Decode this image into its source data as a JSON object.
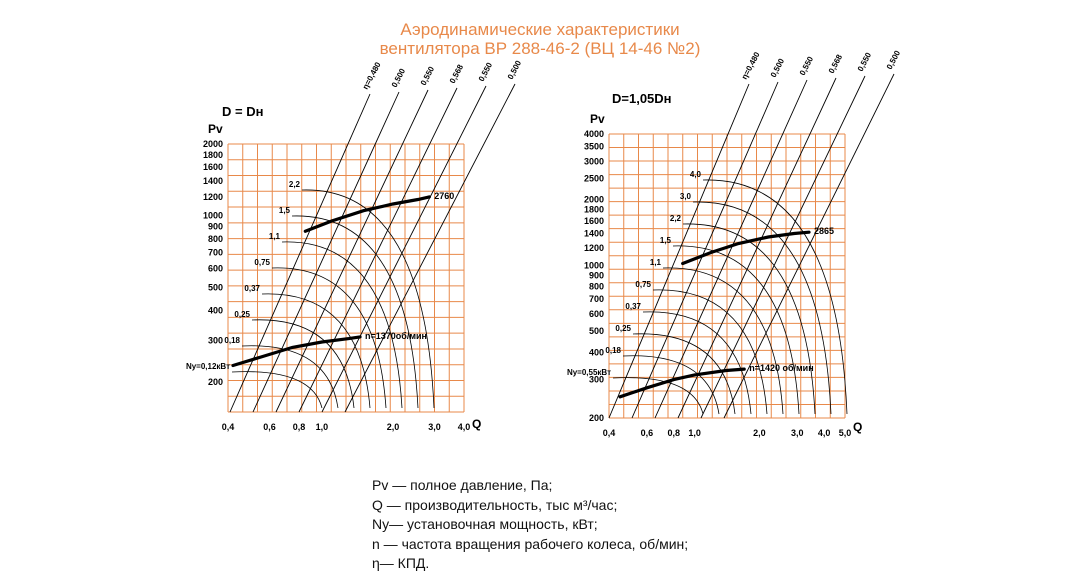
{
  "title_line1": "Аэродинамические характеристики",
  "title_line2": "вентилятора  ВР 288-46-2 (ВЦ 14-46 №2)",
  "colors": {
    "grid": "#e8894a",
    "title": "#e8894a",
    "ink": "#000000"
  },
  "legend": [
    "Pv — полное давление, Па;",
    "Q  — производительность, тыс м³/час;",
    "Ny— установочная мощность, кВт;",
    "n — частота вращения рабочего колеса, об/мин;",
    "η— КПД."
  ],
  "chart_data": [
    {
      "type": "line",
      "title": "D = Dн",
      "ylabel": "Pv",
      "xlabel": "Q",
      "x_scale": "log",
      "y_scale": "log",
      "xlim": [
        0.4,
        4.0
      ],
      "ylim": [
        150,
        2000
      ],
      "x_ticks": [
        "0,4",
        "0,6",
        "0,8",
        "1,0",
        "2,0",
        "3,0",
        "4,0"
      ],
      "x_tick_values": [
        0.4,
        0.6,
        0.8,
        1.0,
        2.0,
        3.0,
        4.0
      ],
      "y_ticks": [
        "2000",
        "1800",
        "1600",
        "1400",
        "1200",
        "1000",
        "900",
        "800",
        "700",
        "600",
        "500",
        "400",
        "300",
        "200"
      ],
      "y_tick_values": [
        2000,
        1800,
        1600,
        1400,
        1200,
        1000,
        900,
        800,
        700,
        600,
        500,
        400,
        300,
        200
      ],
      "series": [
        {
          "name": "2760",
          "x": [
            0.85,
            1.1,
            1.5,
            2.0,
            2.55,
            2.85
          ],
          "y": [
            860,
            950,
            1050,
            1120,
            1170,
            1200
          ]
        },
        {
          "name": "n=1370об/мин",
          "x": [
            0.42,
            0.55,
            0.75,
            1.0,
            1.3,
            1.45
          ],
          "y": [
            235,
            255,
            280,
            295,
            305,
            310
          ]
        }
      ],
      "efficiency_labels": [
        "η=0,480",
        "0,500",
        "0,550",
        "0,568",
        "0,550",
        "0,500"
      ],
      "power_labels": [
        "Ny=0,12кВт",
        "0,18",
        "0,25",
        "0,37",
        "0,75",
        "1,1",
        "1,5",
        "2,2"
      ],
      "grid": true
    },
    {
      "type": "line",
      "title": "D=1,05Dн",
      "ylabel": "Pv",
      "xlabel": "Q",
      "x_scale": "log",
      "y_scale": "log",
      "xlim": [
        0.4,
        5.0
      ],
      "ylim": [
        200,
        4000
      ],
      "x_ticks": [
        "0,4",
        "0,6",
        "0,8",
        "1,0",
        "2,0",
        "3,0",
        "4,0",
        "5,0"
      ],
      "x_tick_values": [
        0.4,
        0.6,
        0.8,
        1.0,
        2.0,
        3.0,
        4.0,
        5.0
      ],
      "y_ticks": [
        "4000",
        "3500",
        "3000",
        "2500",
        "2000",
        "1800",
        "1600",
        "1400",
        "1200",
        "1000",
        "900",
        "800",
        "700",
        "600",
        "500",
        "400",
        "300",
        "200"
      ],
      "y_tick_values": [
        4000,
        3500,
        3000,
        2500,
        2000,
        1800,
        1600,
        1400,
        1200,
        1000,
        900,
        800,
        700,
        600,
        500,
        400,
        300,
        200
      ],
      "series": [
        {
          "name": "2865",
          "x": [
            0.88,
            1.2,
            1.6,
            2.2,
            2.9,
            3.4
          ],
          "y": [
            1020,
            1150,
            1260,
            1350,
            1400,
            1420
          ]
        },
        {
          "name": "n=1420 об/мин",
          "x": [
            0.45,
            0.6,
            0.8,
            1.0,
            1.4,
            1.7
          ],
          "y": [
            250,
            275,
            300,
            315,
            330,
            335
          ]
        }
      ],
      "efficiency_labels": [
        "η=0,480",
        "0,500",
        "0,550",
        "0,568",
        "0,550",
        "0,500"
      ],
      "power_labels": [
        "Ny=0,55кВт",
        "0,18",
        "0,25",
        "0,37",
        "0,75",
        "1,1",
        "1,5",
        "2,2",
        "3,0",
        "4,0"
      ],
      "grid": true
    }
  ]
}
